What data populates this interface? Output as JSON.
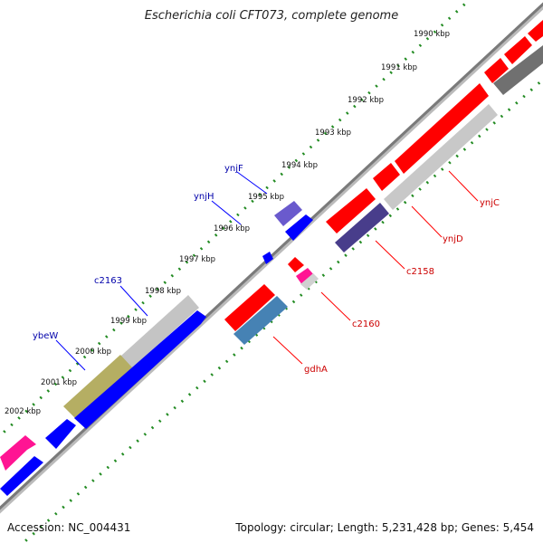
{
  "title": "Escherichia coli CFT073, complete genome",
  "footer": {
    "accession": "Accession: NC_004431",
    "stats": "Topology: circular; Length: 5,231,428 bp; Genes: 5,454"
  },
  "ticks": [
    "1990 kbp",
    "1991 kbp",
    "1992 kbp",
    "1993 kbp",
    "1994 kbp",
    "1995 kbp",
    "1996 kbp",
    "1997 kbp",
    "1998 kbp",
    "1999 kbp",
    "2000 kbp",
    "2001 kbp",
    "2002 kbp"
  ],
  "gene_labels": {
    "forward": [
      "ynjF",
      "ynjH",
      "c2163",
      "ybeW"
    ],
    "reverse": [
      "ynjC",
      "ynjD",
      "c2158",
      "c2160",
      "gdhA"
    ]
  },
  "colors": {
    "forward_gene": "#0000ff",
    "reverse_gene": "#ff0000",
    "forward_label": "#0000aa",
    "reverse_label": "#cc0000",
    "tick_dots": "#228b22",
    "backbone": "#888888"
  }
}
